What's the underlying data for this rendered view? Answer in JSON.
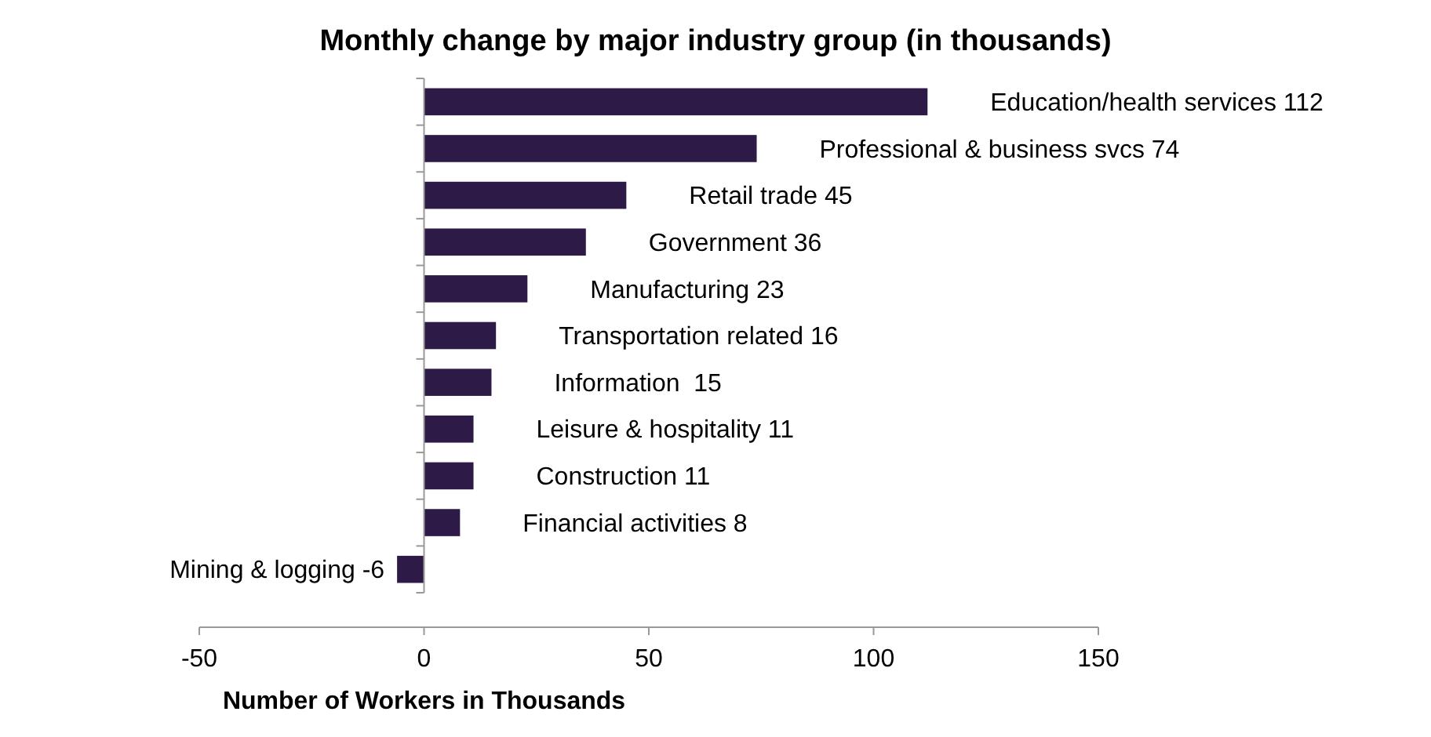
{
  "chart_data": {
    "type": "bar",
    "orientation": "horizontal",
    "title": "Monthly change by major industry group (in thousands)",
    "xlabel": "Number of Workers in Thousands",
    "categories": [
      "Education/health services 112",
      "Professional & business svcs 74",
      "Retail trade 45",
      "Government 36",
      "Manufacturing 23",
      "Transportation related 16",
      "Information  15",
      "Leisure & hospitality 11",
      "Construction 11",
      "Financial activities 8",
      "Mining & logging -6"
    ],
    "values": [
      112,
      74,
      45,
      36,
      23,
      16,
      15,
      11,
      11,
      8,
      -6
    ],
    "color": "#2e1a47",
    "xlim": [
      -50,
      150
    ],
    "xticks": [
      -50,
      0,
      50,
      100,
      150
    ]
  }
}
